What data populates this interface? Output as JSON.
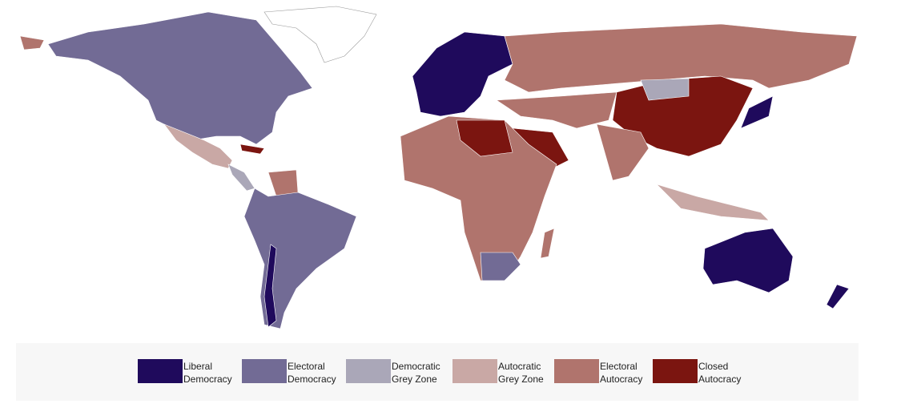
{
  "legend": {
    "items": [
      {
        "lines": [
          "Liberal",
          "Democracy"
        ],
        "color": "#1f0a5c"
      },
      {
        "lines": [
          "Electoral",
          "Democracy"
        ],
        "color": "#726b95"
      },
      {
        "lines": [
          "Democratic",
          "Grey Zone"
        ],
        "color": "#aaa7b8"
      },
      {
        "lines": [
          "Autocratic",
          "Grey Zone"
        ],
        "color": "#c9a8a5"
      },
      {
        "lines": [
          "Electoral",
          "Autocracy"
        ],
        "color": "#b0746d"
      },
      {
        "lines": [
          "Closed",
          "Autocracy"
        ],
        "color": "#7b1510"
      }
    ]
  }
}
